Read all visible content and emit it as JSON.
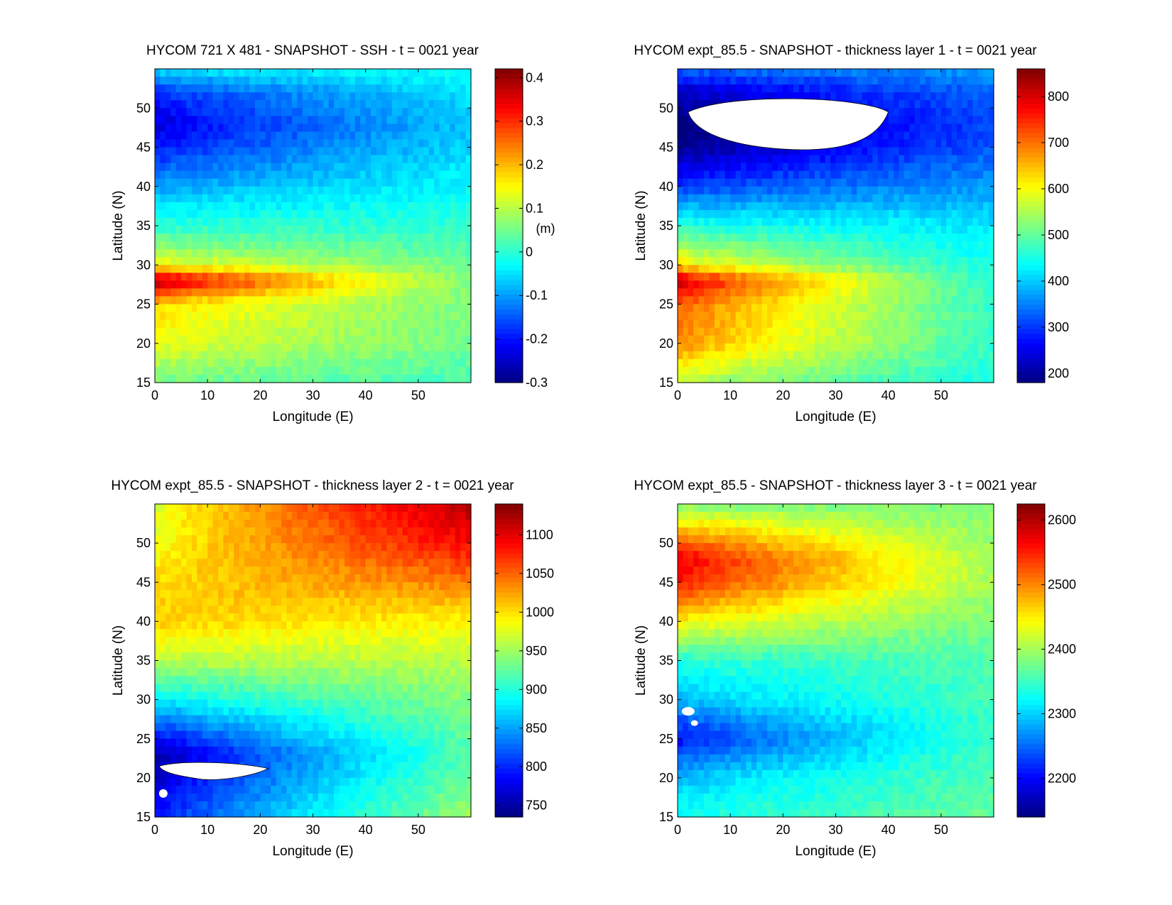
{
  "chart_data": [
    {
      "type": "heatmap",
      "title": "HYCOM 721 X 481 - SNAPSHOT - SSH - t = 0021 year",
      "xlabel": "Longitude (E)",
      "ylabel": "Latitude (N)",
      "xlim": [
        0,
        60
      ],
      "ylim": [
        15,
        55
      ],
      "xticks": [
        "0",
        "10",
        "20",
        "30",
        "40",
        "50"
      ],
      "yticks": [
        "15",
        "20",
        "25",
        "30",
        "35",
        "40",
        "45",
        "50"
      ],
      "colorbar": {
        "range": [
          -0.3,
          0.42
        ],
        "ticks": [
          "-0.3",
          "-0.2",
          "-0.1",
          "0",
          "0.1",
          "0.2",
          "0.3",
          "0.4"
        ],
        "tick_values": [
          -0.3,
          -0.2,
          -0.1,
          0,
          0.1,
          0.2,
          0.3,
          0.4
        ],
        "unit": "(m)"
      },
      "field": {
        "description_values": "approximate SSH field values by latitude band (data units, m)",
        "lat": [
          15,
          20,
          25,
          28,
          30,
          32,
          35,
          40,
          45,
          48,
          52,
          55
        ],
        "west_values": [
          0.05,
          0.14,
          0.18,
          0.4,
          0.15,
          0.08,
          0.0,
          -0.1,
          -0.2,
          -0.24,
          -0.18,
          -0.05
        ],
        "east_values": [
          0.02,
          0.05,
          0.06,
          0.06,
          0.05,
          0.03,
          0.0,
          -0.03,
          -0.06,
          -0.07,
          -0.05,
          -0.02
        ]
      }
    },
    {
      "type": "heatmap",
      "title": "HYCOM expt_85.5 - SNAPSHOT - thickness layer 1 - t = 0021 year",
      "xlabel": "Longitude (E)",
      "ylabel": "Latitude (N)",
      "xlim": [
        0,
        60
      ],
      "ylim": [
        15,
        55
      ],
      "xticks": [
        "0",
        "10",
        "20",
        "30",
        "40",
        "50"
      ],
      "yticks": [
        "15",
        "20",
        "25",
        "30",
        "35",
        "40",
        "45",
        "50"
      ],
      "colorbar": {
        "range": [
          180,
          860
        ],
        "ticks": [
          "200",
          "300",
          "400",
          "500",
          "600",
          "700",
          "800"
        ],
        "tick_values": [
          200,
          300,
          400,
          500,
          600,
          700,
          800
        ],
        "unit": ""
      },
      "field": {
        "lat": [
          15,
          20,
          25,
          28,
          30,
          35,
          40,
          45,
          48,
          52,
          55
        ],
        "west_values": [
          560,
          690,
          720,
          820,
          620,
          460,
          300,
          180,
          170,
          220,
          330
        ],
        "east_values": [
          450,
          470,
          470,
          460,
          450,
          420,
          370,
          320,
          310,
          330,
          370
        ]
      },
      "masked_regions": [
        "white region near 45-50 N, 2-40 E"
      ]
    },
    {
      "type": "heatmap",
      "title": "HYCOM expt_85.5 - SNAPSHOT - thickness layer 2 - t = 0021 year",
      "xlabel": "Longitude (E)",
      "ylabel": "Latitude (N)",
      "xlim": [
        0,
        60
      ],
      "ylim": [
        15,
        55
      ],
      "xticks": [
        "0",
        "10",
        "20",
        "30",
        "40",
        "50"
      ],
      "yticks": [
        "15",
        "20",
        "25",
        "30",
        "35",
        "40",
        "45",
        "50"
      ],
      "colorbar": {
        "range": [
          735,
          1140
        ],
        "ticks": [
          "750",
          "800",
          "850",
          "900",
          "950",
          "1000",
          "1050",
          "1100"
        ],
        "tick_values": [
          750,
          800,
          850,
          900,
          950,
          1000,
          1050,
          1100
        ],
        "unit": ""
      },
      "field": {
        "lat": [
          15,
          20,
          23,
          27,
          30,
          35,
          40,
          45,
          50,
          55
        ],
        "west_values": [
          790,
          760,
          745,
          820,
          880,
          960,
          1010,
          1000,
          980,
          970
        ],
        "east_values": [
          950,
          930,
          920,
          930,
          940,
          960,
          990,
          1040,
          1090,
          1120
        ]
      },
      "masked_regions": [
        "white region near 20-22 N, 1-22 E"
      ]
    },
    {
      "type": "heatmap",
      "title": "HYCOM expt_85.5 - SNAPSHOT - thickness layer 3 - t = 0021 year",
      "xlabel": "Longitude (E)",
      "ylabel": "Latitude (N)",
      "xlim": [
        0,
        60
      ],
      "ylim": [
        15,
        55
      ],
      "xticks": [
        "0",
        "10",
        "20",
        "30",
        "40",
        "50"
      ],
      "yticks": [
        "15",
        "20",
        "25",
        "30",
        "35",
        "40",
        "45",
        "50"
      ],
      "colorbar": {
        "range": [
          2140,
          2625
        ],
        "ticks": [
          "2200",
          "2300",
          "2400",
          "2500",
          "2600"
        ],
        "tick_values": [
          2200,
          2300,
          2400,
          2500,
          2600
        ],
        "unit": ""
      },
      "field": {
        "lat": [
          15,
          20,
          25,
          28,
          30,
          35,
          40,
          45,
          48,
          52,
          55
        ],
        "west_values": [
          2330,
          2290,
          2200,
          2250,
          2290,
          2340,
          2450,
          2560,
          2580,
          2470,
          2380
        ],
        "east_values": [
          2370,
          2360,
          2350,
          2350,
          2355,
          2360,
          2380,
          2400,
          2400,
          2390,
          2380
        ]
      },
      "masked_regions": [
        "white spots near 26-29 N, 1-4 E"
      ]
    }
  ]
}
